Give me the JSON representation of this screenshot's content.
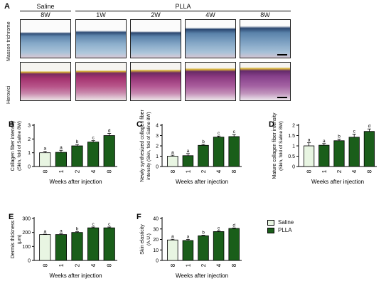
{
  "panel_a": {
    "label": "A",
    "group_saline": "Saline",
    "group_plla": "PLLA",
    "columns": [
      "8W",
      "1W",
      "2W",
      "4W",
      "8W"
    ],
    "row_masson": "Masson trichrome",
    "row_herovici": "Herovici"
  },
  "colors": {
    "saline_fill": "#e8f5e2",
    "plla_fill": "#1a5e1a",
    "masson_bg": "#5f86ad",
    "herovici_bg": "#a4336f"
  },
  "legend": {
    "saline": "Saline",
    "plla": "PLLA"
  },
  "chart_data": [
    {
      "panel": "B",
      "type": "bar",
      "categories": [
        "8",
        "1",
        "2",
        "4",
        "8"
      ],
      "values": [
        1.0,
        1.03,
        1.5,
        1.78,
        2.25
      ],
      "errors": [
        0.1,
        0.15,
        0.1,
        0.1,
        0.15
      ],
      "letters": [
        "a",
        "a",
        "b",
        "c",
        "d"
      ],
      "ylim": [
        0,
        3
      ],
      "yticks": [
        0,
        1,
        2,
        3
      ],
      "ylabel": "Collagen fiber intensity",
      "ylabel2": "(Skin, fold of Saline 8W)",
      "xlabel": "Weeks after injection",
      "series": [
        "Saline",
        "PLLA",
        "PLLA",
        "PLLA",
        "PLLA"
      ]
    },
    {
      "panel": "C",
      "type": "bar",
      "categories": [
        "8",
        "1",
        "2",
        "4",
        "8"
      ],
      "values": [
        1.0,
        1.05,
        2.05,
        2.85,
        2.9
      ],
      "errors": [
        0.1,
        0.2,
        0.1,
        0.1,
        0.2
      ],
      "letters": [
        "a",
        "a",
        "b",
        "c",
        "c"
      ],
      "ylim": [
        0,
        4
      ],
      "yticks": [
        0,
        1,
        2,
        3,
        4
      ],
      "ylabel": "Newly synthesized collagen fiber",
      "ylabel2": "intensity (Skin, fold of Saline 8W)",
      "xlabel": "Weeks after injection",
      "series": [
        "Saline",
        "PLLA",
        "PLLA",
        "PLLA",
        "PLLA"
      ]
    },
    {
      "panel": "D",
      "type": "bar",
      "categories": [
        "8",
        "1",
        "2",
        "4",
        "8"
      ],
      "values": [
        1.0,
        1.03,
        1.25,
        1.42,
        1.7
      ],
      "errors": [
        0.15,
        0.08,
        0.08,
        0.15,
        0.12
      ],
      "letters": [
        "a",
        "a",
        "b",
        "c",
        "d"
      ],
      "ylim": [
        0,
        2.0
      ],
      "yticks": [
        0.0,
        0.5,
        1.0,
        1.5,
        2.0
      ],
      "ylabel": "Mature collagen fiber intensity",
      "ylabel2": "(Skin, fold of Saline 8W)",
      "xlabel": "Weeks after injection",
      "series": [
        "Saline",
        "PLLA",
        "PLLA",
        "PLLA",
        "PLLA"
      ]
    },
    {
      "panel": "E",
      "type": "bar",
      "categories": [
        "8",
        "1",
        "2",
        "4",
        "8"
      ],
      "values": [
        185,
        185,
        200,
        233,
        233
      ],
      "errors": [
        3,
        5,
        5,
        6,
        6
      ],
      "letters": [
        "a",
        "a",
        "b",
        "c",
        "c"
      ],
      "ylim": [
        0,
        300
      ],
      "yticks": [
        0,
        100,
        200,
        300
      ],
      "ylabel": "Dermis thickness",
      "ylabel2": "(μm)",
      "xlabel": "Weeks after injection",
      "series": [
        "Saline",
        "PLLA",
        "PLLA",
        "PLLA",
        "PLLA"
      ]
    },
    {
      "panel": "F",
      "type": "bar",
      "categories": [
        "8",
        "1",
        "2",
        "4",
        "8"
      ],
      "values": [
        19.5,
        19.0,
        23.5,
        27.5,
        30.5
      ],
      "errors": [
        0.7,
        1.0,
        0.5,
        0.8,
        0.5
      ],
      "letters": [
        "a",
        "a",
        "b",
        "c",
        "d"
      ],
      "ylim": [
        0,
        40
      ],
      "yticks": [
        0,
        10,
        20,
        30,
        40
      ],
      "ylabel": "Skin elasticity",
      "ylabel2": "(A.U.)",
      "xlabel": "Weeks after injection",
      "series": [
        "Saline",
        "PLLA",
        "PLLA",
        "PLLA",
        "PLLA"
      ]
    }
  ]
}
